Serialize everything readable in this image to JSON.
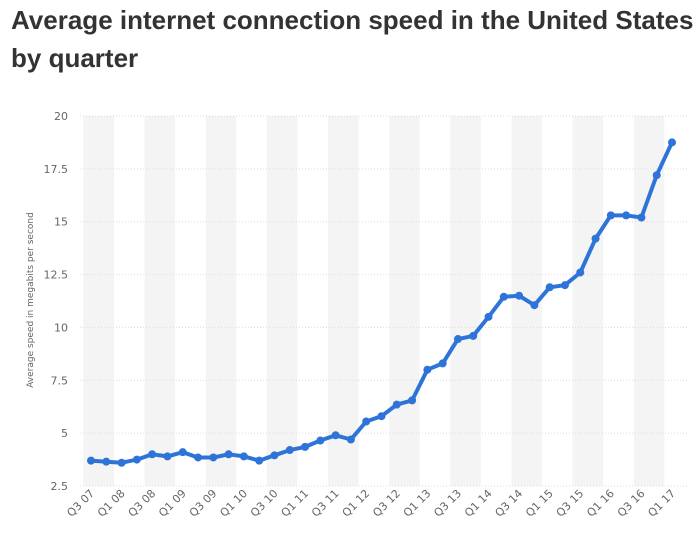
{
  "page": {
    "title_line1": "Average internet connection speed in the United States",
    "title_line2": "by quarter"
  },
  "chart_data": {
    "type": "line",
    "title": "Average internet connection speed in the United States by quarter",
    "xlabel": "",
    "ylabel": "Average speed in megabits per second",
    "categories": [
      "Q3 07",
      "Q4 07",
      "Q1 08",
      "Q2 08",
      "Q3 08",
      "Q4 08",
      "Q1 09",
      "Q2 09",
      "Q3 09",
      "Q4 09",
      "Q1 10",
      "Q2 10",
      "Q3 10",
      "Q4 10",
      "Q1 11",
      "Q2 11",
      "Q3 11",
      "Q4 11",
      "Q1 12",
      "Q2 12",
      "Q3 12",
      "Q4 12",
      "Q1 13",
      "Q2 13",
      "Q3 13",
      "Q4 13",
      "Q1 14",
      "Q2 14",
      "Q3 14",
      "Q4 14",
      "Q1 15",
      "Q2 15",
      "Q3 15",
      "Q4 15",
      "Q1 16",
      "Q2 16",
      "Q3 16",
      "Q4 16",
      "Q1 17"
    ],
    "tick_labels": [
      "Q3 07",
      "Q1 08",
      "Q3 08",
      "Q1 09",
      "Q3 09",
      "Q1 10",
      "Q3 10",
      "Q1 11",
      "Q3 11",
      "Q1 12",
      "Q3 12",
      "Q1 13",
      "Q3 13",
      "Q1 14",
      "Q3 14",
      "Q1 15",
      "Q3 15",
      "Q1 16",
      "Q3 16",
      "Q1 17"
    ],
    "series": [
      {
        "values": [
          3.7,
          3.65,
          3.6,
          3.75,
          4.0,
          3.9,
          4.1,
          3.85,
          3.85,
          4.0,
          3.9,
          3.7,
          3.95,
          4.2,
          4.35,
          4.65,
          4.9,
          4.7,
          5.55,
          5.8,
          6.35,
          6.55,
          8.0,
          8.3,
          9.45,
          9.6,
          10.5,
          11.45,
          11.5,
          11.05,
          11.9,
          12.0,
          12.6,
          14.2,
          15.3,
          15.3,
          15.2,
          17.2,
          18.75
        ],
        "color": "#2e74d8"
      }
    ],
    "yticks": [
      2.5,
      5,
      7.5,
      10,
      12.5,
      15,
      17.5,
      20
    ],
    "ytick_labels": [
      "2.5",
      "5",
      "7.5",
      "10",
      "12.5",
      "15",
      "17.5",
      "20"
    ],
    "ylim": [
      2.5,
      20
    ],
    "grid": true
  }
}
